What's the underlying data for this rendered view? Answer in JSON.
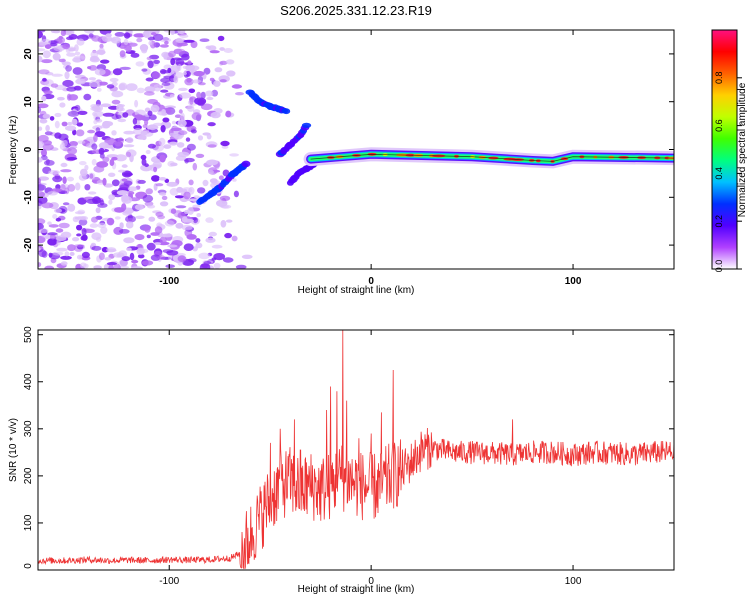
{
  "title": "S206.2025.331.12.23.R19",
  "chart_data": [
    {
      "type": "heatmap",
      "name": "spectrogram",
      "xlabel": "Height of straight line (km)",
      "ylabel": "Frequency (Hz)",
      "xlim": [
        -165,
        150
      ],
      "ylim": [
        -25,
        25
      ],
      "xticks": [
        -100,
        0,
        100
      ],
      "yticks": [
        -20,
        -10,
        0,
        10,
        20
      ],
      "colorbar": {
        "label": "Normalized spectral amplitude",
        "range": [
          0,
          1
        ],
        "ticks": [
          0.0,
          0.2,
          0.4,
          0.6,
          0.8
        ],
        "tick_labels": [
          "0.0",
          "0.2",
          "0.4",
          "0.6",
          "0.8"
        ],
        "colors": [
          "#ffffff",
          "#b040ff",
          "#5000ff",
          "#0030ff",
          "#00c0ff",
          "#00ff80",
          "#40ff00",
          "#c0ff00",
          "#ffd000",
          "#ff6000",
          "#ff0000",
          "#ff1080"
        ]
      },
      "features": [
        {
          "name": "noise-field",
          "x_range": [
            -165,
            -70
          ],
          "freq_range": [
            -25,
            25
          ],
          "amplitude": 0.15
        },
        {
          "name": "rising-track",
          "points": [
            [
              -85,
              -11
            ],
            [
              -75,
              -8
            ],
            [
              -68,
              -5
            ],
            [
              -62,
              -3
            ]
          ],
          "amplitude": 0.3
        },
        {
          "name": "upper-cluster",
          "points": [
            [
              -60,
              12
            ],
            [
              -55,
              10
            ],
            [
              -50,
              9
            ],
            [
              -46,
              8.5
            ],
            [
              -42,
              8
            ]
          ],
          "amplitude": 0.3
        },
        {
          "name": "middle-track",
          "points": [
            [
              -45,
              -1
            ],
            [
              -40,
              1
            ],
            [
              -35,
              3
            ],
            [
              -32,
              5
            ]
          ],
          "amplitude": 0.25
        },
        {
          "name": "lower-cluster",
          "points": [
            [
              -40,
              -7
            ],
            [
              -36,
              -5
            ],
            [
              -32,
              -4
            ],
            [
              -28,
              -3
            ]
          ],
          "amplitude": 0.2
        },
        {
          "name": "main-line",
          "points": [
            [
              -30,
              -2
            ],
            [
              -15,
              -1.5
            ],
            [
              0,
              -1
            ],
            [
              50,
              -1.5
            ],
            [
              80,
              -2.3
            ],
            [
              90,
              -2.5
            ],
            [
              100,
              -1.5
            ],
            [
              150,
              -1.8
            ]
          ],
          "amplitude": 0.85
        }
      ]
    },
    {
      "type": "line",
      "name": "snr",
      "xlabel": "Height of straight line (km)",
      "ylabel": "SNR (10 * v/v)",
      "xlim": [
        -165,
        150
      ],
      "ylim": [
        0,
        510
      ],
      "xticks": [
        -100,
        0,
        100
      ],
      "yticks": [
        0,
        100,
        200,
        300,
        400,
        500
      ],
      "color": "#ee3333",
      "series": [
        {
          "name": "SNR",
          "x": [
            -165,
            -150,
            -140,
            -130,
            -120,
            -110,
            -100,
            -90,
            -80,
            -70,
            -65,
            -60,
            -55,
            -50,
            -45,
            -40,
            -35,
            -30,
            -25,
            -20,
            -15,
            -10,
            -5,
            0,
            5,
            10,
            15,
            20,
            25,
            30,
            40,
            50,
            60,
            70,
            80,
            90,
            100,
            110,
            120,
            130,
            140,
            150
          ],
          "values": [
            20,
            20,
            22,
            20,
            21,
            20,
            22,
            21,
            22,
            25,
            35,
            70,
            110,
            150,
            180,
            190,
            170,
            180,
            170,
            180,
            200,
            190,
            180,
            175,
            180,
            200,
            210,
            230,
            255,
            260,
            250,
            250,
            248,
            245,
            250,
            250,
            245,
            250,
            248,
            245,
            250,
            250
          ],
          "spikes": [
            {
              "x": -50,
              "y": 270
            },
            {
              "x": -45,
              "y": 300
            },
            {
              "x": -38,
              "y": 320
            },
            {
              "x": -35,
              "y": 255
            },
            {
              "x": -22,
              "y": 340
            },
            {
              "x": -20,
              "y": 390
            },
            {
              "x": -17,
              "y": 380
            },
            {
              "x": -14,
              "y": 510
            },
            {
              "x": -12,
              "y": 360
            },
            {
              "x": -6,
              "y": 280
            },
            {
              "x": 0,
              "y": 290
            },
            {
              "x": 5,
              "y": 335
            },
            {
              "x": 11,
              "y": 425
            },
            {
              "x": 70,
              "y": 320
            }
          ]
        }
      ]
    }
  ]
}
